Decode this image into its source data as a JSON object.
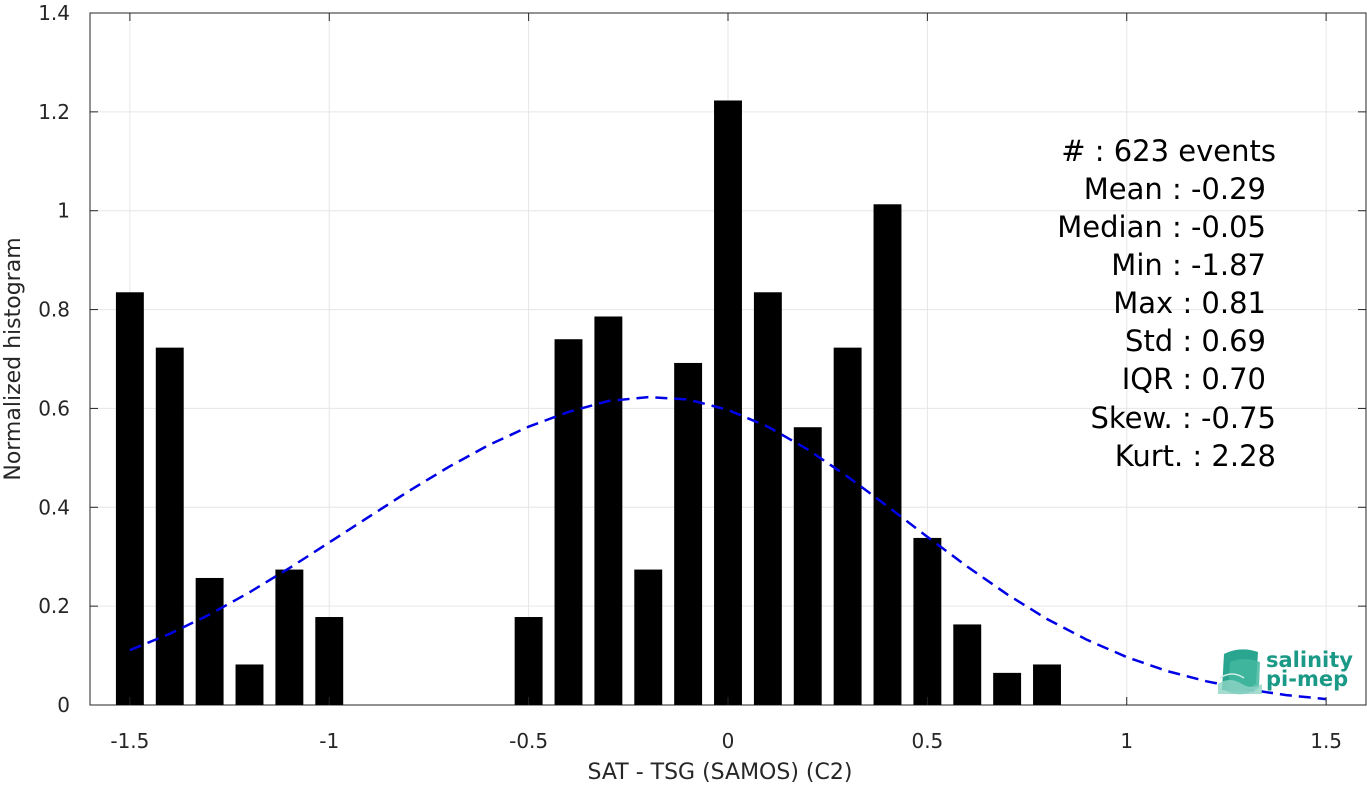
{
  "chart_data": {
    "type": "bar",
    "xlabel": "SAT - TSG (SAMOS) (C2)",
    "ylabel": "Normalized histogram",
    "xlim": [
      -1.6,
      1.6
    ],
    "ylim": [
      0,
      1.4
    ],
    "grid": true,
    "x_ticks": [
      -1.5,
      -1,
      -0.5,
      0,
      0.5,
      1,
      1.5
    ],
    "x_tick_labels": [
      "-1.5",
      "-1",
      "-0.5",
      "0",
      "0.5",
      "1",
      "1.5"
    ],
    "y_ticks": [
      0,
      0.2,
      0.4,
      0.6,
      0.8,
      1,
      1.2,
      1.4
    ],
    "y_tick_labels": [
      "0",
      "0.2",
      "0.4",
      "0.6",
      "0.8",
      "1",
      "1.2",
      "1.4"
    ],
    "bar_width": 0.07,
    "bars": {
      "x": [
        -1.5,
        -1.4,
        -1.3,
        -1.2,
        -1.1,
        -1.0,
        -0.5,
        -0.4,
        -0.3,
        -0.2,
        -0.1,
        0.0,
        0.1,
        0.2,
        0.3,
        0.4,
        0.5,
        0.6,
        0.7,
        0.8
      ],
      "values": [
        0.835,
        0.723,
        0.257,
        0.082,
        0.274,
        0.178,
        0.178,
        0.74,
        0.786,
        0.274,
        0.692,
        1.223,
        0.835,
        0.562,
        0.723,
        1.013,
        0.338,
        0.163,
        0.065,
        0.082
      ],
      "color": "#000000"
    },
    "fit_curve": {
      "style": "dashed",
      "color": "#0000e6",
      "x": [
        -1.5,
        -1.4,
        -1.3,
        -1.2,
        -1.1,
        -1.0,
        -0.9,
        -0.8,
        -0.7,
        -0.6,
        -0.5,
        -0.4,
        -0.3,
        -0.2,
        -0.1,
        0.0,
        0.1,
        0.2,
        0.3,
        0.4,
        0.5,
        0.6,
        0.7,
        0.8,
        0.9,
        1.0,
        1.1,
        1.2,
        1.3,
        1.4,
        1.5
      ],
      "y": [
        0.111,
        0.144,
        0.183,
        0.228,
        0.277,
        0.329,
        0.381,
        0.433,
        0.482,
        0.526,
        0.563,
        0.593,
        0.615,
        0.623,
        0.618,
        0.597,
        0.563,
        0.517,
        0.462,
        0.402,
        0.34,
        0.28,
        0.224,
        0.174,
        0.132,
        0.097,
        0.069,
        0.048,
        0.032,
        0.02,
        0.012
      ]
    },
    "stats": [
      {
        "label": "#  ",
        "sep": ": ",
        "value": "623 events"
      },
      {
        "label": "Mean ",
        "sep": ": ",
        "value": "-0.29"
      },
      {
        "label": "Median ",
        "sep": ": ",
        "value": "-0.05"
      },
      {
        "label": "Min ",
        "sep": ": ",
        "value": "-1.87"
      },
      {
        "label": "Max ",
        "sep": ": ",
        "value": "0.81"
      },
      {
        "label": "Std ",
        "sep": ": ",
        "value": "0.69"
      },
      {
        "label": "IQR ",
        "sep": ": ",
        "value": "0.70"
      },
      {
        "label": "Skew. ",
        "sep": ": ",
        "value": "-0.75"
      },
      {
        "label": "Kurt. ",
        "sep": ": ",
        "value": "2.28"
      }
    ]
  },
  "logo": {
    "line1": "salinity",
    "line2": "pi-mep",
    "color": "#1a9a86"
  }
}
